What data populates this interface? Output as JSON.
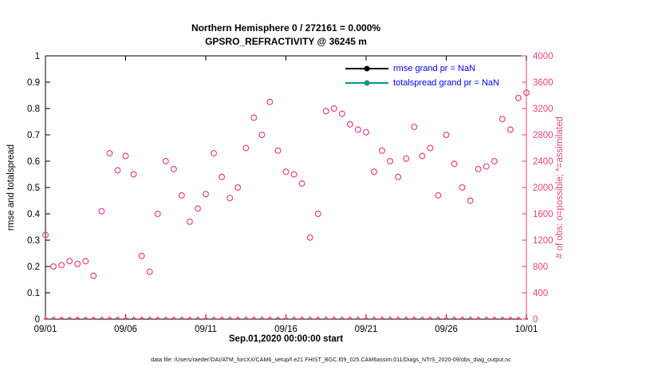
{
  "chart": {
    "title_line1": "Northern Hemisphere 0 / 272161 = 0.000%",
    "title_line2": "GPSRO_REFRACTIVITY @ 36245 m",
    "left_axis_label": "rmse and totalspread",
    "right_axis_label": "# of obs: o=possible; *=assimilated",
    "x_axis_label": "Sep.01,2020 00:00:00 start",
    "caption": "data file: /Users/raeder/DAI/ATM_forcXX/CAM6_setup/f.e21.FHIST_BGC.f09_025.CAM6assim.011/Diags_NTrS_2020-09/obs_diag_output.nc",
    "legend": [
      {
        "label": "rmse grand pr = NaN",
        "color": "#000000"
      },
      {
        "label": "totalspread grand pr = NaN",
        "color": "#0d9488"
      }
    ],
    "colors": {
      "obs_pink": "#e8437c",
      "legend_text": "#0000ee",
      "axis_black": "#000000",
      "background": "#ffffff"
    }
  },
  "chart_data": {
    "type": "scatter",
    "title": "Northern Hemisphere 0 / 272161 = 0.000% — GPSRO_REFRACTIVITY @ 36245 m",
    "xlabel": "Sep.01,2020 00:00:00 start",
    "ylabel_left": "rmse and totalspread",
    "ylabel_right": "# of obs: o=possible; *=assimilated",
    "x_range_days": [
      0,
      30
    ],
    "left_ylim": [
      0,
      1
    ],
    "right_ylim": [
      0,
      4000
    ],
    "grid": false,
    "legend_position": "top-right-inside",
    "x_tick_days": [
      0,
      5,
      10,
      15,
      20,
      25,
      30
    ],
    "x_tick_labels": [
      "09/01",
      "09/06",
      "09/11",
      "09/16",
      "09/21",
      "09/26",
      "10/01"
    ],
    "left_y_ticks": [
      0,
      0.1,
      0.2,
      0.3,
      0.4,
      0.5,
      0.6,
      0.7,
      0.8,
      0.9,
      1
    ],
    "left_y_tick_labels": [
      "0",
      "0.1",
      "0.2",
      "0.3",
      "0.4",
      "0.5",
      "0.6",
      "0.7",
      "0.8",
      "0.9",
      "1"
    ],
    "right_y_ticks": [
      0,
      400,
      800,
      1200,
      1600,
      2000,
      2400,
      2800,
      3200,
      3600,
      4000
    ],
    "right_y_tick_labels": [
      "0",
      "400",
      "800",
      "1200",
      "1600",
      "2000",
      "2400",
      "2800",
      "3200",
      "3600",
      "4000"
    ],
    "rmse_grand": "NaN",
    "totalspread_grand": "NaN",
    "series": [
      {
        "name": "possible",
        "marker": "o",
        "axis": "right",
        "days": [
          0,
          0.5,
          1,
          1.5,
          2,
          2.5,
          3,
          3.5,
          4,
          4.5,
          5,
          5.5,
          6,
          6.5,
          7,
          7.5,
          8,
          8.5,
          9,
          9.5,
          10,
          10.5,
          11,
          11.5,
          12,
          12.5,
          13,
          13.5,
          14,
          14.5,
          15,
          15.5,
          16,
          16.5,
          17,
          17.5,
          18,
          18.5,
          19,
          19.5,
          20,
          20.5,
          21,
          21.5,
          22,
          22.5,
          23,
          23.5,
          24,
          24.5,
          25,
          25.5,
          26,
          26.5,
          27,
          27.5,
          28,
          28.5,
          29,
          29.5,
          30
        ],
        "values": [
          1280,
          800,
          820,
          880,
          840,
          880,
          660,
          1640,
          2520,
          2260,
          2480,
          2200,
          960,
          720,
          1600,
          2400,
          2280,
          1880,
          1480,
          1680,
          1900,
          2520,
          2160,
          1840,
          2000,
          2600,
          3060,
          2800,
          3300,
          2560,
          2240,
          2200,
          2060,
          1240,
          1600,
          3160,
          3200,
          3120,
          2960,
          2880,
          2840,
          2240,
          2560,
          2400,
          2160,
          2440,
          2920,
          2480,
          2600,
          1880,
          2800,
          2360,
          2000,
          1800,
          2280,
          2320,
          2400,
          3040,
          2880,
          3360,
          3440
        ]
      },
      {
        "name": "assimilated",
        "marker": "*",
        "axis": "right",
        "days": [
          0,
          0.5,
          1,
          1.5,
          2,
          2.5,
          3,
          3.5,
          4,
          4.5,
          5,
          5.5,
          6,
          6.5,
          7,
          7.5,
          8,
          8.5,
          9,
          9.5,
          10,
          10.5,
          11,
          11.5,
          12,
          12.5,
          13,
          13.5,
          14,
          14.5,
          15,
          15.5,
          16,
          16.5,
          17,
          17.5,
          18,
          18.5,
          19,
          19.5,
          20,
          20.5,
          21,
          21.5,
          22,
          22.5,
          23,
          23.5,
          24,
          24.5,
          25,
          25.5,
          26,
          26.5,
          27,
          27.5,
          28,
          28.5,
          29,
          29.5,
          30
        ],
        "values": [
          0,
          0,
          0,
          0,
          0,
          0,
          0,
          0,
          0,
          0,
          0,
          0,
          0,
          0,
          0,
          0,
          0,
          0,
          0,
          0,
          0,
          0,
          0,
          0,
          0,
          0,
          0,
          0,
          0,
          0,
          0,
          0,
          0,
          0,
          0,
          0,
          0,
          0,
          0,
          0,
          0,
          0,
          0,
          0,
          0,
          0,
          0,
          0,
          0,
          0,
          0,
          0,
          0,
          0,
          0,
          0,
          0,
          0,
          0,
          0,
          0
        ]
      }
    ]
  }
}
